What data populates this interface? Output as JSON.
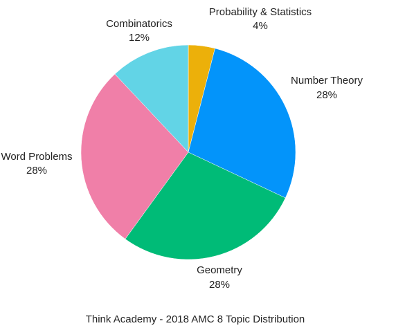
{
  "chart_data": {
    "type": "pie",
    "title": "Think Academy - 2018 AMC 8 Topic Distribution",
    "slices": [
      {
        "label": "Probability & Statistics",
        "percent_label": "4%",
        "value": 4,
        "color": "#ecb00a"
      },
      {
        "label": "Number Theory",
        "percent_label": "28%",
        "value": 28,
        "color": "#0394fa"
      },
      {
        "label": "Geometry",
        "percent_label": "28%",
        "value": 28,
        "color": "#00bb77"
      },
      {
        "label": "Word Problems",
        "percent_label": "28%",
        "value": 28,
        "color": "#f07fa8"
      },
      {
        "label": "Combinatorics",
        "percent_label": "12%",
        "value": 12,
        "color": "#62d4e6"
      }
    ],
    "start_angle": "top",
    "direction": "clockwise",
    "legend": "none"
  }
}
